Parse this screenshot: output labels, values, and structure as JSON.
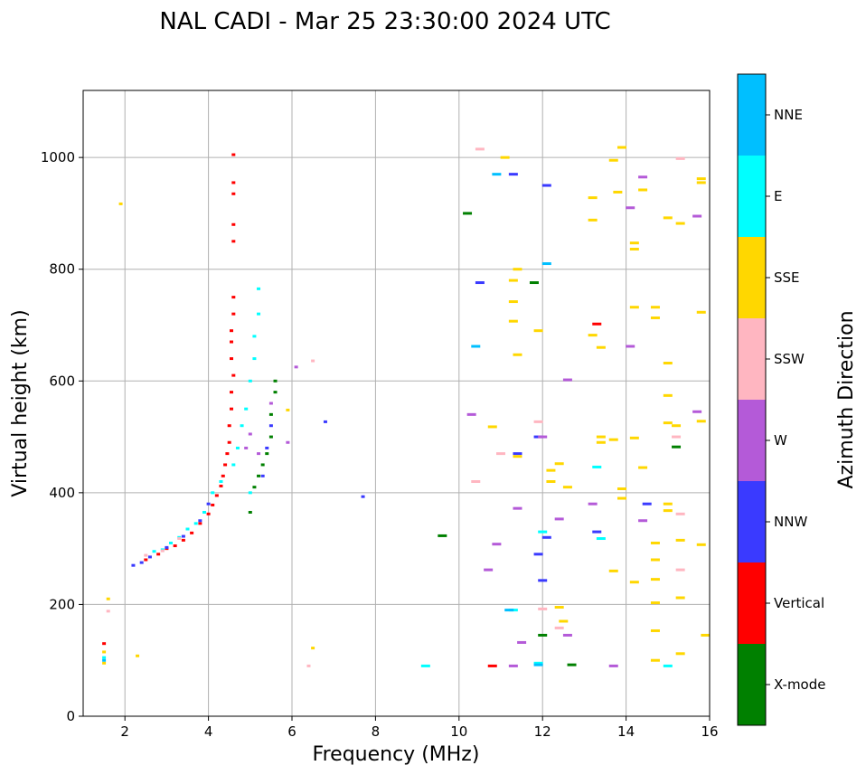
{
  "chart_data": {
    "type": "scatter",
    "title": "NAL CADI - Mar 25 23:30:00 2024 UTC",
    "xlabel": "Frequency (MHz)",
    "ylabel": "Virtual height (km)",
    "xlim": [
      1,
      16
    ],
    "ylim": [
      0,
      1120
    ],
    "xticks": [
      2,
      4,
      6,
      8,
      10,
      12,
      14,
      16
    ],
    "yticks": [
      0,
      200,
      400,
      600,
      800,
      1000
    ],
    "grid": true,
    "colorbar": {
      "title": "Azimuth Direction",
      "categories": [
        {
          "name": "X-mode",
          "color": "#008000"
        },
        {
          "name": "Vertical",
          "color": "#ff0000"
        },
        {
          "name": "NNW",
          "color": "#3a3aff"
        },
        {
          "name": "W",
          "color": "#b45ad8"
        },
        {
          "name": "SSW",
          "color": "#ffb6c1"
        },
        {
          "name": "SSE",
          "color": "#ffd700"
        },
        {
          "name": "E",
          "color": "#00ffff"
        },
        {
          "name": "NNE",
          "color": "#00bfff"
        }
      ]
    },
    "series": [
      {
        "name": "Vertical",
        "points": [
          [
            2.5,
            280
          ],
          [
            2.8,
            290
          ],
          [
            3.0,
            300
          ],
          [
            3.2,
            305
          ],
          [
            3.4,
            315
          ],
          [
            3.6,
            328
          ],
          [
            3.8,
            345
          ],
          [
            4.0,
            362
          ],
          [
            4.1,
            378
          ],
          [
            4.2,
            395
          ],
          [
            4.3,
            412
          ],
          [
            4.35,
            430
          ],
          [
            4.4,
            450
          ],
          [
            4.45,
            470
          ],
          [
            4.5,
            490
          ],
          [
            4.5,
            520
          ],
          [
            4.55,
            550
          ],
          [
            4.55,
            580
          ],
          [
            4.6,
            610
          ],
          [
            4.55,
            640
          ],
          [
            4.55,
            670
          ],
          [
            4.55,
            690
          ],
          [
            4.6,
            720
          ],
          [
            4.6,
            750
          ],
          [
            4.6,
            850
          ],
          [
            4.6,
            880
          ],
          [
            4.6,
            935
          ],
          [
            4.6,
            955
          ],
          [
            4.6,
            1005
          ],
          [
            1.5,
            130
          ],
          [
            13.3,
            702
          ],
          [
            10.8,
            90
          ]
        ]
      },
      {
        "name": "E",
        "points": [
          [
            2.7,
            295
          ],
          [
            2.9,
            298
          ],
          [
            3.1,
            310
          ],
          [
            3.3,
            320
          ],
          [
            3.5,
            335
          ],
          [
            3.7,
            345
          ],
          [
            3.9,
            365
          ],
          [
            4.1,
            400
          ],
          [
            4.3,
            420
          ],
          [
            4.6,
            450
          ],
          [
            4.7,
            480
          ],
          [
            4.8,
            520
          ],
          [
            4.9,
            550
          ],
          [
            5.0,
            600
          ],
          [
            5.1,
            640
          ],
          [
            5.1,
            680
          ],
          [
            5.2,
            720
          ],
          [
            5.2,
            765
          ],
          [
            5.0,
            400
          ],
          [
            1.5,
            105
          ],
          [
            9.2,
            90
          ],
          [
            11.9,
            95
          ],
          [
            12.0,
            330
          ],
          [
            13.4,
            318
          ],
          [
            13.3,
            446
          ],
          [
            15.0,
            90
          ],
          [
            11.3,
            190
          ]
        ]
      },
      {
        "name": "NNW",
        "points": [
          [
            2.2,
            270
          ],
          [
            2.4,
            275
          ],
          [
            2.6,
            285
          ],
          [
            3.0,
            302
          ],
          [
            3.4,
            322
          ],
          [
            3.8,
            350
          ],
          [
            4.0,
            380
          ],
          [
            5.3,
            430
          ],
          [
            5.4,
            480
          ],
          [
            5.5,
            520
          ],
          [
            6.8,
            527
          ],
          [
            7.7,
            393
          ],
          [
            10.5,
            776
          ],
          [
            11.3,
            970
          ],
          [
            11.4,
            470
          ],
          [
            11.9,
            500
          ],
          [
            12.0,
            243
          ],
          [
            12.1,
            950
          ],
          [
            11.9,
            290
          ],
          [
            12.1,
            320
          ],
          [
            13.3,
            330
          ],
          [
            14.5,
            380
          ]
        ]
      },
      {
        "name": "W",
        "points": [
          [
            4.9,
            480
          ],
          [
            5.0,
            505
          ],
          [
            5.2,
            470
          ],
          [
            5.5,
            560
          ],
          [
            5.9,
            490
          ],
          [
            6.1,
            625
          ],
          [
            10.3,
            540
          ],
          [
            10.7,
            262
          ],
          [
            10.9,
            308
          ],
          [
            11.4,
            372
          ],
          [
            11.5,
            132
          ],
          [
            12.0,
            500
          ],
          [
            12.4,
            353
          ],
          [
            12.6,
            602
          ],
          [
            13.2,
            380
          ],
          [
            13.7,
            90
          ],
          [
            14.1,
            910
          ],
          [
            14.1,
            662
          ],
          [
            14.4,
            965
          ],
          [
            14.4,
            350
          ],
          [
            15.7,
            895
          ],
          [
            15.7,
            545
          ],
          [
            11.3,
            90
          ],
          [
            12.6,
            145
          ]
        ]
      },
      {
        "name": "X-mode",
        "points": [
          [
            5.0,
            365
          ],
          [
            5.1,
            410
          ],
          [
            5.2,
            430
          ],
          [
            5.3,
            450
          ],
          [
            5.4,
            470
          ],
          [
            5.5,
            500
          ],
          [
            5.5,
            540
          ],
          [
            5.6,
            580
          ],
          [
            5.6,
            600
          ],
          [
            9.6,
            323
          ],
          [
            10.2,
            900
          ],
          [
            12.0,
            145
          ],
          [
            12.7,
            92
          ],
          [
            15.2,
            482
          ],
          [
            11.8,
            776
          ]
        ]
      },
      {
        "name": "SSE",
        "points": [
          [
            1.5,
            95
          ],
          [
            1.5,
            115
          ],
          [
            1.6,
            210
          ],
          [
            1.9,
            917
          ],
          [
            2.3,
            108
          ],
          [
            5.9,
            548
          ],
          [
            6.5,
            122
          ],
          [
            10.8,
            518
          ],
          [
            11.1,
            1000
          ],
          [
            11.3,
            780
          ],
          [
            11.3,
            742
          ],
          [
            11.4,
            800
          ],
          [
            11.4,
            647
          ],
          [
            11.3,
            707
          ],
          [
            11.4,
            465
          ],
          [
            11.9,
            690
          ],
          [
            12.2,
            440
          ],
          [
            12.2,
            420
          ],
          [
            12.4,
            452
          ],
          [
            12.4,
            195
          ],
          [
            12.5,
            170
          ],
          [
            12.6,
            410
          ],
          [
            13.2,
            928
          ],
          [
            13.2,
            888
          ],
          [
            13.2,
            682
          ],
          [
            13.4,
            660
          ],
          [
            13.4,
            500
          ],
          [
            13.4,
            490
          ],
          [
            13.7,
            995
          ],
          [
            13.7,
            495
          ],
          [
            13.7,
            260
          ],
          [
            13.8,
            938
          ],
          [
            13.9,
            1018
          ],
          [
            13.9,
            407
          ],
          [
            13.9,
            390
          ],
          [
            14.2,
            847
          ],
          [
            14.2,
            836
          ],
          [
            14.2,
            732
          ],
          [
            14.2,
            498
          ],
          [
            14.2,
            240
          ],
          [
            14.4,
            942
          ],
          [
            14.4,
            445
          ],
          [
            14.7,
            732
          ],
          [
            14.7,
            713
          ],
          [
            14.7,
            310
          ],
          [
            14.7,
            280
          ],
          [
            14.7,
            245
          ],
          [
            14.7,
            203
          ],
          [
            14.7,
            153
          ],
          [
            14.7,
            100
          ],
          [
            15.0,
            892
          ],
          [
            15.0,
            632
          ],
          [
            15.0,
            574
          ],
          [
            15.0,
            525
          ],
          [
            15.0,
            380
          ],
          [
            15.0,
            368
          ],
          [
            15.2,
            520
          ],
          [
            15.3,
            882
          ],
          [
            15.3,
            315
          ],
          [
            15.3,
            212
          ],
          [
            15.3,
            112
          ],
          [
            15.8,
            955
          ],
          [
            15.8,
            962
          ],
          [
            15.8,
            723
          ],
          [
            15.8,
            528
          ],
          [
            15.8,
            307
          ],
          [
            15.9,
            145
          ]
        ]
      },
      {
        "name": "SSW",
        "points": [
          [
            2.5,
            288
          ],
          [
            2.9,
            296
          ],
          [
            3.3,
            318
          ],
          [
            6.4,
            90
          ],
          [
            6.5,
            636
          ],
          [
            10.4,
            420
          ],
          [
            10.5,
            1015
          ],
          [
            11.0,
            470
          ],
          [
            11.9,
            527
          ],
          [
            12.0,
            192
          ],
          [
            12.4,
            158
          ],
          [
            15.2,
            500
          ],
          [
            15.3,
            998
          ],
          [
            15.3,
            362
          ],
          [
            15.3,
            262
          ],
          [
            1.6,
            188
          ]
        ]
      },
      {
        "name": "NNE",
        "points": [
          [
            1.5,
            100
          ],
          [
            10.9,
            970
          ],
          [
            11.2,
            190
          ],
          [
            11.9,
            92
          ],
          [
            12.1,
            810
          ],
          [
            10.4,
            662
          ]
        ]
      }
    ]
  }
}
